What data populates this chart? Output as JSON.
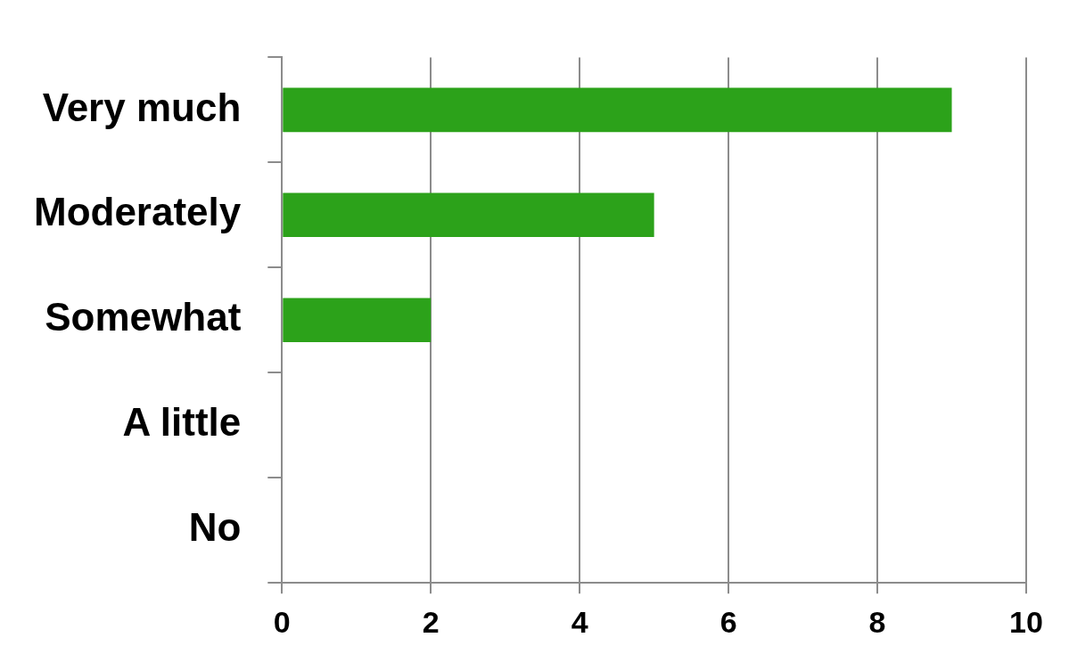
{
  "chart_data": {
    "type": "bar",
    "orientation": "horizontal",
    "categories": [
      "Very much",
      "Moderately",
      "Somewhat",
      "A little",
      "No"
    ],
    "values": [
      9,
      5,
      2,
      0,
      0
    ],
    "color": "#2ca21a",
    "xlim": [
      0,
      10
    ],
    "xticks": [
      0,
      2,
      4,
      6,
      8,
      10
    ],
    "grid": "x",
    "legend": false
  }
}
